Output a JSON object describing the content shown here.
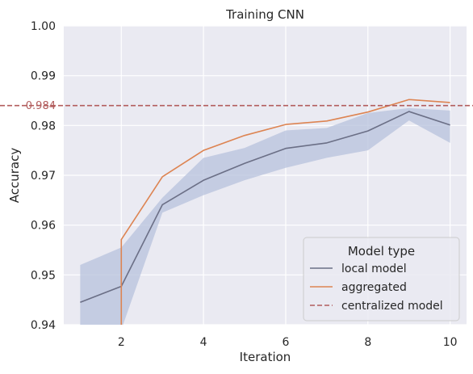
{
  "chart_data": {
    "type": "line",
    "title": "Training CNN",
    "xlabel": "Iteration",
    "ylabel": "Accuracy",
    "xlim": [
      0.6,
      10.4
    ],
    "ylim": [
      0.94,
      1.0
    ],
    "xticks": [
      2,
      4,
      6,
      8,
      10
    ],
    "xtick_labels": [
      "2",
      "4",
      "6",
      "8",
      "10"
    ],
    "yticks": [
      0.94,
      0.95,
      0.96,
      0.97,
      0.98,
      0.99,
      1.0
    ],
    "ytick_labels": [
      "0.94",
      "0.95",
      "0.96",
      "0.97",
      "0.98",
      "0.99",
      "1.00"
    ],
    "grid": true,
    "legend": {
      "title": "Model type",
      "placement": "lower-right",
      "entries": [
        "local model",
        "aggregated",
        "centralized model"
      ]
    },
    "series": [
      {
        "name": "local model",
        "color": "#6b6f86",
        "x": [
          1,
          2,
          3,
          4,
          5,
          6,
          7,
          8,
          9,
          10
        ],
        "values": [
          0.9445,
          0.9477,
          0.9641,
          0.969,
          0.9724,
          0.9754,
          0.9765,
          0.9789,
          0.9828,
          0.9801
        ],
        "ci_lower": [
          0.937,
          0.939,
          0.9625,
          0.966,
          0.969,
          0.9715,
          0.9735,
          0.975,
          0.981,
          0.9765
        ],
        "ci_upper": [
          0.952,
          0.9555,
          0.9655,
          0.9735,
          0.9755,
          0.979,
          0.9795,
          0.9825,
          0.9835,
          0.983
        ]
      },
      {
        "name": "aggregated",
        "color": "#dd8452",
        "x": [
          2,
          2,
          3,
          4,
          5,
          6,
          7,
          8,
          9,
          10
        ],
        "values": [
          0.94,
          0.9571,
          0.9697,
          0.975,
          0.978,
          0.9802,
          0.9809,
          0.9827,
          0.9852,
          0.9846
        ]
      }
    ],
    "reference_line": {
      "name": "centralized model",
      "value": 0.984,
      "label": "0.984",
      "color": "#b25d5d"
    }
  }
}
